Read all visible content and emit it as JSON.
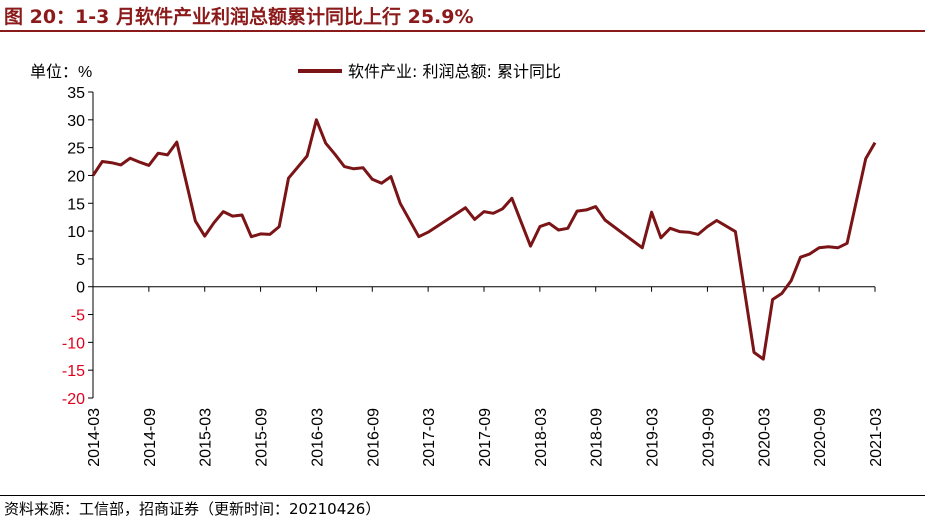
{
  "title": "图 20：1-3 月软件产业利润总额累计同比上行 25.9%",
  "footer": "资料来源：工信部，招商证券（更新时间：20210426）",
  "colors": {
    "title": "#8b1a1a",
    "line": "#7a1416",
    "negative_tick": "#e0001b"
  },
  "chart_data": {
    "type": "line",
    "unit_label": "单位：%",
    "ylim": [
      -20,
      35
    ],
    "yticks": [
      35,
      30,
      25,
      20,
      15,
      10,
      5,
      0,
      -5,
      -10,
      -15,
      -20
    ],
    "xtick_labels": [
      "2014-03",
      "2014-09",
      "2015-03",
      "2015-09",
      "2016-03",
      "2016-09",
      "2017-03",
      "2017-09",
      "2018-03",
      "2018-09",
      "2019-03",
      "2019-09",
      "2020-03",
      "2020-09",
      "2021-03"
    ],
    "grid": false,
    "legend": {
      "position": "top-center"
    },
    "series": [
      {
        "name": "软件产业: 利润总额: 累计同比",
        "x": [
          "2014-03",
          "2014-04",
          "2014-05",
          "2014-06",
          "2014-07",
          "2014-08",
          "2014-09",
          "2014-10",
          "2014-11",
          "2014-12",
          "2015-02",
          "2015-03",
          "2015-04",
          "2015-05",
          "2015-06",
          "2015-07",
          "2015-08",
          "2015-09",
          "2015-10",
          "2015-11",
          "2015-12",
          "2016-02",
          "2016-03",
          "2016-04",
          "2016-05",
          "2016-06",
          "2016-07",
          "2016-08",
          "2016-09",
          "2016-10",
          "2016-11",
          "2016-12",
          "2017-02",
          "2017-03",
          "2017-05",
          "2017-07",
          "2017-08",
          "2017-09",
          "2017-10",
          "2017-11",
          "2017-12",
          "2018-02",
          "2018-03",
          "2018-04",
          "2018-05",
          "2018-06",
          "2018-07",
          "2018-08",
          "2018-09",
          "2018-10",
          "2018-12",
          "2019-02",
          "2019-03",
          "2019-04",
          "2019-05",
          "2019-06",
          "2019-07",
          "2019-08",
          "2019-09",
          "2019-10",
          "2019-12",
          "2020-02",
          "2020-03",
          "2020-04",
          "2020-05",
          "2020-06",
          "2020-07",
          "2020-08",
          "2020-09",
          "2020-10",
          "2020-11",
          "2020-12",
          "2021-02",
          "2021-03"
        ],
        "values": [
          20.0,
          22.5,
          22.3,
          21.9,
          23.1,
          22.4,
          21.8,
          24.0,
          23.7,
          26.0,
          11.8,
          9.1,
          11.5,
          13.5,
          12.7,
          12.9,
          9.0,
          9.5,
          9.4,
          10.8,
          19.5,
          23.5,
          30.0,
          25.8,
          23.8,
          21.6,
          21.2,
          21.4,
          19.3,
          18.6,
          19.8,
          15.0,
          9.0,
          9.8,
          12.0,
          14.2,
          12.1,
          13.5,
          13.2,
          14.0,
          15.9,
          7.3,
          10.8,
          11.4,
          10.2,
          10.5,
          13.6,
          13.8,
          14.4,
          12.0,
          9.5,
          7.0,
          13.4,
          8.8,
          10.5,
          9.9,
          9.8,
          9.4,
          10.8,
          11.9,
          9.9,
          -11.8,
          -13.0,
          -2.3,
          -1.2,
          1.1,
          5.3,
          5.9,
          7.0,
          7.2,
          7.0,
          7.8,
          23.0,
          25.9
        ]
      }
    ]
  }
}
